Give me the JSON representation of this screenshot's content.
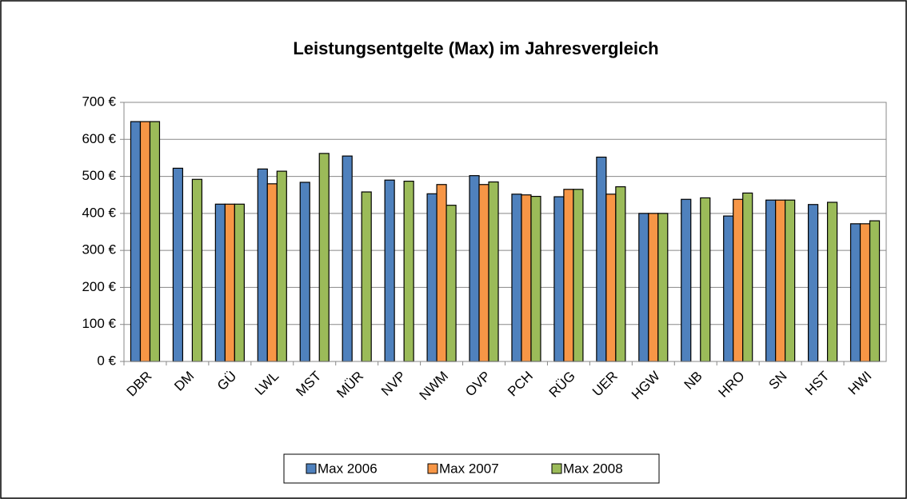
{
  "chart_data": {
    "type": "bar",
    "title": "Leistungsentgelte (Max) im Jahresvergleich",
    "categories": [
      "DBR",
      "DM",
      "GÜ",
      "LWL",
      "MST",
      "MÜR",
      "NVP",
      "NWM",
      "OVP",
      "PCH",
      "RÜG",
      "UER",
      "HGW",
      "NB",
      "HRO",
      "SN",
      "HST",
      "HWI"
    ],
    "series": [
      {
        "name": "Max 2006",
        "color": "#4f81bd",
        "values": [
          648,
          522,
          425,
          520,
          484,
          555,
          490,
          453,
          502,
          452,
          445,
          552,
          400,
          438,
          393,
          436,
          424,
          372
        ]
      },
      {
        "name": "Max 2007",
        "color": "#f79646",
        "values": [
          648,
          null,
          425,
          480,
          null,
          null,
          null,
          478,
          478,
          450,
          465,
          452,
          400,
          null,
          438,
          436,
          null,
          372
        ]
      },
      {
        "name": "Max 2008",
        "color": "#9bbb59",
        "values": [
          648,
          492,
          425,
          514,
          562,
          458,
          487,
          422,
          485,
          446,
          465,
          472,
          400,
          442,
          455,
          436,
          430,
          380
        ]
      }
    ],
    "ylim": [
      0,
      700
    ],
    "yticks": [
      {
        "value": 0,
        "label": "0 €"
      },
      {
        "value": 100,
        "label": "100 €"
      },
      {
        "value": 200,
        "label": "200 €"
      },
      {
        "value": 300,
        "label": "300 €"
      },
      {
        "value": 400,
        "label": "400 €"
      },
      {
        "value": 500,
        "label": "500 €"
      },
      {
        "value": 600,
        "label": "600 €"
      },
      {
        "value": 700,
        "label": "700 €"
      }
    ],
    "grid": true,
    "legend": "bottom"
  }
}
